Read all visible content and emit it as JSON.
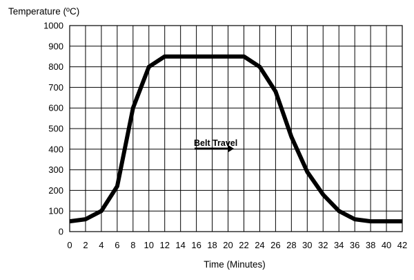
{
  "chart_data": {
    "type": "line",
    "ylabel": "Temperature (ºC)",
    "xlabel": "Time (Minutes)",
    "annotation": "Belt Travel",
    "xlim": [
      0,
      42
    ],
    "ylim": [
      0,
      1000
    ],
    "x_ticks": [
      "0",
      "2",
      "4",
      "6",
      "8",
      "10",
      "12",
      "14",
      "16",
      "18",
      "20",
      "22",
      "24",
      "26",
      "28",
      "30",
      "32",
      "34",
      "36",
      "38",
      "40",
      "42"
    ],
    "y_ticks": [
      "0",
      "100",
      "200",
      "300",
      "400",
      "500",
      "600",
      "700",
      "800",
      "900",
      "1000"
    ],
    "grid": true,
    "series": [
      {
        "x": [
          0,
          2,
          4,
          6,
          8,
          10,
          12,
          14,
          16,
          18,
          20,
          22,
          24,
          26,
          28,
          30,
          32,
          34,
          36,
          38,
          40,
          42
        ],
        "y": [
          50,
          60,
          100,
          220,
          600,
          800,
          850,
          850,
          850,
          850,
          850,
          850,
          800,
          680,
          460,
          290,
          180,
          100,
          60,
          50,
          50,
          50
        ],
        "color": "#000000"
      }
    ]
  }
}
